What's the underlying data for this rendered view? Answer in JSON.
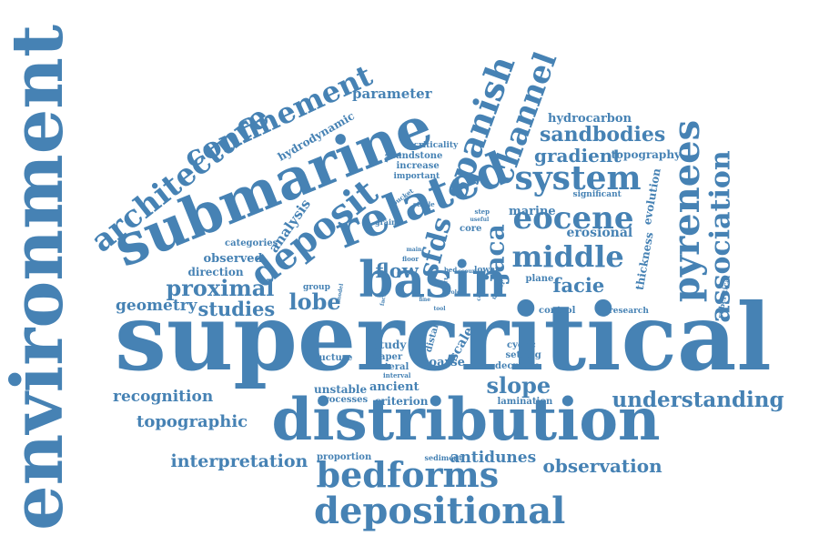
{
  "word_color": "#4682b4",
  "background_color": "#ffffff",
  "words": [
    {
      "key": "w0",
      "text": "supercritical"
    },
    {
      "key": "w1",
      "text": "environment"
    },
    {
      "key": "w2",
      "text": "distribution"
    },
    {
      "key": "w3",
      "text": "submarine"
    },
    {
      "key": "w4",
      "text": "basin"
    },
    {
      "key": "w5",
      "text": "related"
    },
    {
      "key": "w6",
      "text": "depositional"
    },
    {
      "key": "w7",
      "text": "bedforms"
    },
    {
      "key": "w8",
      "text": "deposit"
    },
    {
      "key": "w9",
      "text": "pyrenees"
    },
    {
      "key": "w10",
      "text": "architecture"
    },
    {
      "key": "w11",
      "text": "confinement"
    },
    {
      "key": "w12",
      "text": "spanish"
    },
    {
      "key": "w13",
      "text": "channel"
    },
    {
      "key": "w14",
      "text": "system"
    },
    {
      "key": "w15",
      "text": "eocene"
    },
    {
      "key": "w16",
      "text": "middle"
    },
    {
      "key": "w17",
      "text": "association"
    },
    {
      "key": "w18",
      "text": "sfds"
    },
    {
      "key": "w19",
      "text": "jaca"
    },
    {
      "key": "w20",
      "text": "understanding"
    },
    {
      "key": "w21",
      "text": "slope"
    },
    {
      "key": "w22",
      "text": "sandbodies"
    },
    {
      "key": "w23",
      "text": "gradient"
    },
    {
      "key": "w24",
      "text": "observation"
    },
    {
      "key": "w25",
      "text": "interpretation"
    },
    {
      "key": "w26",
      "text": "antidunes"
    },
    {
      "key": "w27",
      "text": "topographic"
    },
    {
      "key": "w28",
      "text": "recognition"
    },
    {
      "key": "w29",
      "text": "proximal"
    },
    {
      "key": "w30",
      "text": "lobe"
    },
    {
      "key": "w31",
      "text": "studies"
    },
    {
      "key": "w32",
      "text": "geometry"
    },
    {
      "key": "w33",
      "text": "analysis"
    },
    {
      "key": "w34",
      "text": "facie"
    },
    {
      "key": "w35",
      "text": "flow"
    },
    {
      "key": "w36",
      "text": "parameter"
    },
    {
      "key": "w37",
      "text": "hydrodynamic"
    },
    {
      "key": "w38",
      "text": "hydrocarbon"
    },
    {
      "key": "w39",
      "text": "topography"
    },
    {
      "key": "w40",
      "text": "erosional"
    },
    {
      "key": "w41",
      "text": "marine"
    },
    {
      "key": "w42",
      "text": "thickness"
    },
    {
      "key": "w43",
      "text": "evolution"
    },
    {
      "key": "w44",
      "text": "observed"
    },
    {
      "key": "w45",
      "text": "direction"
    },
    {
      "key": "w46",
      "text": "categories"
    },
    {
      "key": "w47",
      "text": "ancient"
    },
    {
      "key": "w48",
      "text": "criterion"
    },
    {
      "key": "w49",
      "text": "unstable"
    },
    {
      "key": "w50",
      "text": "processes"
    },
    {
      "key": "w51",
      "text": "structure"
    },
    {
      "key": "w52",
      "text": "study"
    },
    {
      "key": "w53",
      "text": "paper"
    },
    {
      "key": "w54",
      "text": "lateral"
    },
    {
      "key": "w55",
      "text": "interval"
    },
    {
      "key": "w56",
      "text": "coarse"
    },
    {
      "key": "w57",
      "text": "scale"
    },
    {
      "key": "w58",
      "text": "distal"
    },
    {
      "key": "w59",
      "text": "cyclic"
    },
    {
      "key": "w60",
      "text": "setting"
    },
    {
      "key": "w61",
      "text": "decrease"
    },
    {
      "key": "w62",
      "text": "lamination"
    },
    {
      "key": "w63",
      "text": "proportion"
    },
    {
      "key": "w64",
      "text": "sediment"
    },
    {
      "key": "w65",
      "text": "control"
    },
    {
      "key": "w66",
      "text": "plane"
    },
    {
      "key": "w67",
      "text": "research"
    },
    {
      "key": "w68",
      "text": "subcritical"
    },
    {
      "key": "w69",
      "text": "significant"
    },
    {
      "key": "w70",
      "text": "criticality"
    },
    {
      "key": "w71",
      "text": "sandstone"
    },
    {
      "key": "w72",
      "text": "increase"
    },
    {
      "key": "w73",
      "text": "important"
    },
    {
      "key": "w74",
      "text": "bucket"
    },
    {
      "key": "w75",
      "text": "stable"
    },
    {
      "key": "w76",
      "text": "step"
    },
    {
      "key": "w77",
      "text": "grain"
    },
    {
      "key": "w78",
      "text": "useful"
    },
    {
      "key": "w79",
      "text": "core"
    },
    {
      "key": "w80",
      "text": "group"
    },
    {
      "key": "w81",
      "text": "main"
    },
    {
      "key": "w82",
      "text": "floor"
    },
    {
      "key": "w83",
      "text": "bed"
    },
    {
      "key": "w84",
      "text": "role"
    },
    {
      "key": "w85",
      "text": "lower"
    },
    {
      "key": "w86",
      "text": "catsyn"
    },
    {
      "key": "w87",
      "text": "upper"
    },
    {
      "key": "w88",
      "text": "part"
    },
    {
      "key": "w89",
      "text": "scour"
    },
    {
      "key": "w90",
      "text": "fine"
    },
    {
      "key": "w91",
      "text": "tool"
    },
    {
      "key": "w92",
      "text": "model"
    },
    {
      "key": "w93",
      "text": "facial"
    },
    {
      "key": "w94",
      "text": "rate"
    }
  ]
}
